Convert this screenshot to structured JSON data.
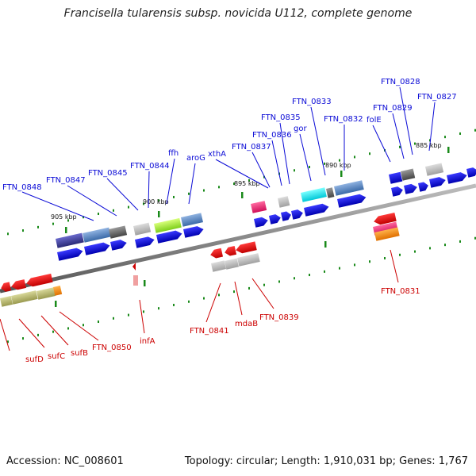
{
  "title": "Francisella tularensis subsp. novicida U112, complete genome",
  "footer": {
    "accession": "Accession: NC_008601",
    "topology": "Topology: circular; Length: 1,910,031 bp; Genes: 1,767"
  },
  "kbp_marks": [
    "905 kbp",
    "900 kbp",
    "895 kbp",
    "890 kbp",
    "885 kbp"
  ],
  "forward_genes": [
    "FTN_0848",
    "FTN_0847",
    "FTN_0845",
    "FTN_0844",
    "ffh",
    "aroG",
    "xthA",
    "FTN_0837",
    "FTN_0836",
    "FTN_0835",
    "gor",
    "FTN_0833",
    "FTN_0832",
    "folE",
    "FTN_0829",
    "FTN_0828",
    "FTN_0827"
  ],
  "reverse_genes": [
    "sufD",
    "sufC",
    "sufB",
    "FTN_0850",
    "infA",
    "FTN_0841",
    "mdaB",
    "FTN_0839",
    "FTN_0831"
  ],
  "colors": {
    "forward": "#0a0ad6",
    "reverse": "#cc0000",
    "backbone": "#777777",
    "tick": "#1a8a1a"
  }
}
